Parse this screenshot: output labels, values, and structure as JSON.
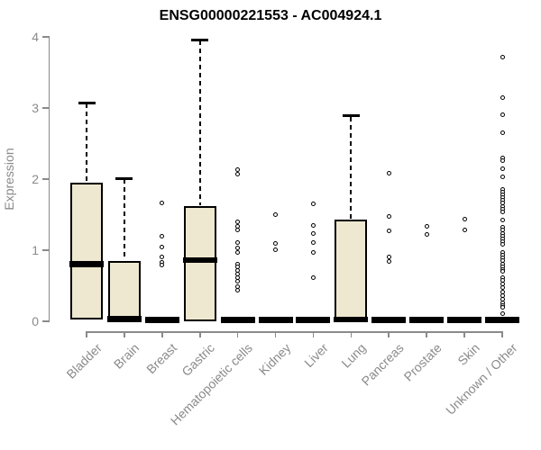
{
  "chart_data": {
    "type": "boxplot",
    "title": "ENSG00000221553 - AC004924.1",
    "xlabel": "",
    "ylabel": "Expression",
    "ylim": [
      0,
      4
    ],
    "yticks": [
      0,
      1,
      2,
      3,
      4
    ],
    "grid": false,
    "legend": "none",
    "categories": [
      "Bladder",
      "Brain",
      "Breast",
      "Gastric",
      "Hematopoietic cells",
      "Kidney",
      "Liver",
      "Lung",
      "Pancreas",
      "Prostate",
      "Skin",
      "Unknown / Other"
    ],
    "boxes": [
      {
        "category": "Bladder",
        "min": 0,
        "q1": 0.02,
        "median": 0.8,
        "q3": 1.95,
        "whisker_high": 3.07,
        "outliers": []
      },
      {
        "category": "Brain",
        "min": 0,
        "q1": 0,
        "median": 0.03,
        "q3": 0.85,
        "whisker_high": 2.01,
        "outliers": []
      },
      {
        "category": "Breast",
        "min": 0,
        "q1": 0,
        "median": 0,
        "q3": 0,
        "whisker_high": 0,
        "outliers": [
          1.67,
          1.2,
          1.04,
          0.91,
          0.83,
          0.79
        ]
      },
      {
        "category": "Gastric",
        "min": 0,
        "q1": 0,
        "median": 0.86,
        "q3": 1.62,
        "whisker_high": 3.96,
        "outliers": []
      },
      {
        "category": "Hematopoietic cells",
        "min": 0,
        "q1": 0,
        "median": 0,
        "q3": 0,
        "whisker_high": 0,
        "outliers": [
          2.13,
          2.07,
          1.4,
          1.34,
          1.28,
          1.11,
          1.03,
          0.97,
          0.8,
          0.76,
          0.71,
          0.66,
          0.61,
          0.56,
          0.49,
          0.44
        ]
      },
      {
        "category": "Kidney",
        "min": 0,
        "q1": 0,
        "median": 0,
        "q3": 0,
        "whisker_high": 0,
        "outliers": [
          1.5,
          1.09,
          1.01
        ]
      },
      {
        "category": "Liver",
        "min": 0,
        "q1": 0,
        "median": 0,
        "q3": 0,
        "whisker_high": 0,
        "outliers": [
          1.65,
          1.35,
          1.24,
          1.11,
          0.97,
          0.62
        ]
      },
      {
        "category": "Lung",
        "min": 0,
        "q1": 0,
        "median": 0.02,
        "q3": 1.43,
        "whisker_high": 2.89,
        "outliers": []
      },
      {
        "category": "Pancreas",
        "min": 0,
        "q1": 0,
        "median": 0,
        "q3": 0,
        "whisker_high": 0,
        "outliers": [
          2.08,
          1.48,
          1.27,
          0.91,
          0.84
        ]
      },
      {
        "category": "Prostate",
        "min": 0,
        "q1": 0,
        "median": 0,
        "q3": 0,
        "whisker_high": 0,
        "outliers": [
          1.34,
          1.22
        ]
      },
      {
        "category": "Skin",
        "min": 0,
        "q1": 0,
        "median": 0,
        "q3": 0,
        "whisker_high": 0,
        "outliers": [
          1.44,
          1.29
        ]
      },
      {
        "category": "Unknown / Other",
        "min": 0,
        "q1": 0,
        "median": 0,
        "q3": 0,
        "whisker_high": 0,
        "outliers": [
          3.72,
          3.15,
          2.91,
          2.65,
          2.3,
          2.26,
          2.15,
          2.03,
          1.86,
          1.82,
          1.78,
          1.74,
          1.7,
          1.66,
          1.62,
          1.58,
          1.54,
          1.42,
          1.32,
          1.28,
          1.24,
          1.2,
          1.16,
          1.12,
          1.08,
          0.97,
          0.93,
          0.89,
          0.85,
          0.81,
          0.77,
          0.73,
          0.7,
          0.62,
          0.58,
          0.53,
          0.47,
          0.41,
          0.36,
          0.31,
          0.26,
          0.22,
          0.19,
          0.11
        ]
      }
    ],
    "colors": {
      "box_fill": "#ede8cf",
      "box_stroke": "#000000",
      "axis": "#8a8a8a",
      "title_text": "#000000"
    }
  }
}
